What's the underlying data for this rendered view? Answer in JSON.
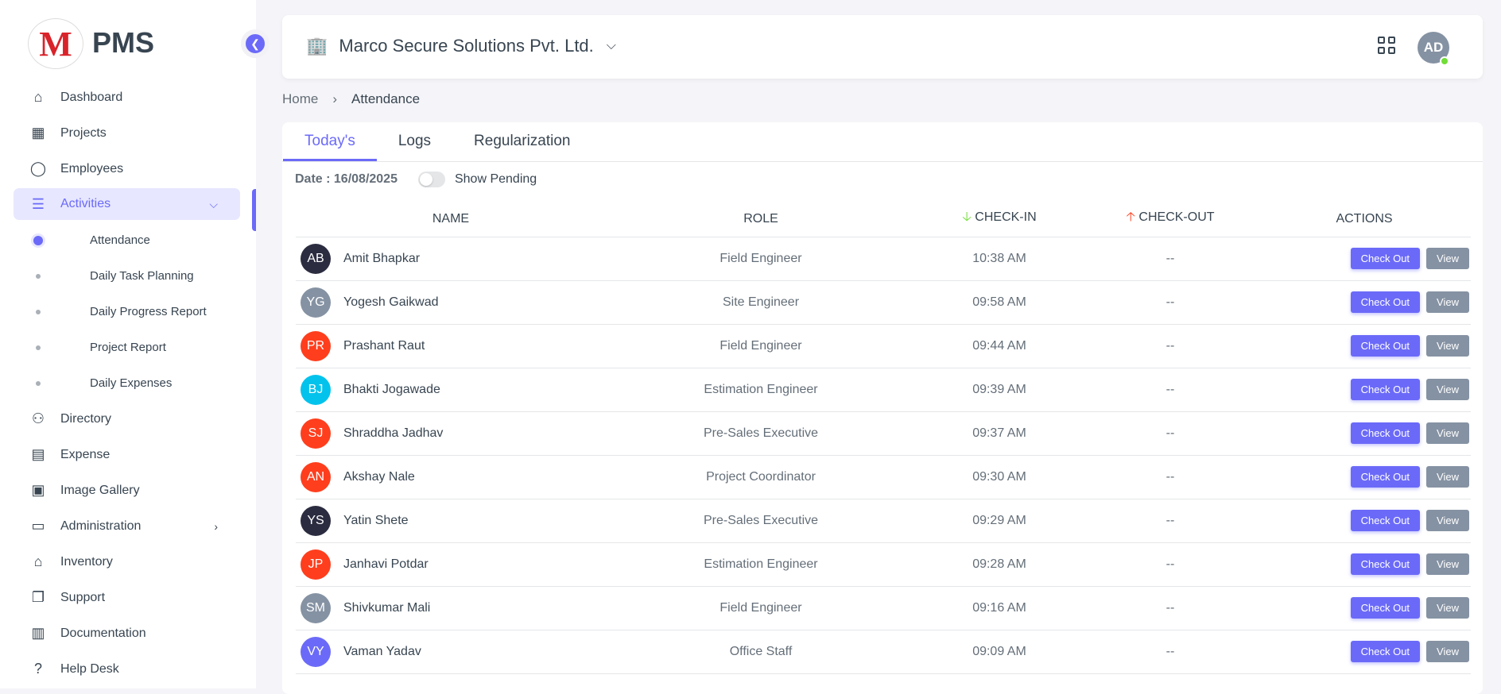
{
  "brand": {
    "logo_letter": "M",
    "name": "PMS"
  },
  "sidebar": {
    "items": [
      {
        "label": "Dashboard",
        "icon": "home-icon"
      },
      {
        "label": "Projects",
        "icon": "building-icon"
      },
      {
        "label": "Employees",
        "icon": "user-icon"
      },
      {
        "label": "Activities",
        "icon": "list-icon",
        "expanded": true,
        "active": true
      },
      {
        "label": "Directory",
        "icon": "users-icon"
      },
      {
        "label": "Expense",
        "icon": "receipt-icon"
      },
      {
        "label": "Image Gallery",
        "icon": "gallery-icon"
      },
      {
        "label": "Administration",
        "icon": "archive-icon",
        "has_children": true
      },
      {
        "label": "Inventory",
        "icon": "store-icon"
      },
      {
        "label": "Support",
        "icon": "copy-icon"
      },
      {
        "label": "Documentation",
        "icon": "book-icon"
      },
      {
        "label": "Help Desk",
        "icon": "question-icon"
      }
    ],
    "sub_items": [
      "Attendance",
      "Daily Task Planning",
      "Daily Progress Report",
      "Project Report",
      "Daily Expenses"
    ]
  },
  "header": {
    "company": "Marco Secure Solutions Pvt. Ltd.",
    "user_initials": "AD"
  },
  "breadcrumb": {
    "home": "Home",
    "current": "Attendance"
  },
  "tabs": [
    "Today's",
    "Logs",
    "Regularization"
  ],
  "filter": {
    "date": "Date : 16/08/2025",
    "toggle_label": "Show Pending",
    "toggle_on": false
  },
  "table": {
    "headers": [
      "NAME",
      "ROLE",
      "CHECK-IN",
      "CHECK-OUT",
      "ACTIONS"
    ],
    "check_out_label": "Check Out",
    "view_label": "View",
    "rows": [
      {
        "initials": "AB",
        "name": "Amit Bhapkar",
        "role": "Field Engineer",
        "check_in": "10:38 AM",
        "check_out": "--",
        "color": "#2b2c40"
      },
      {
        "initials": "YG",
        "name": "Yogesh Gaikwad",
        "role": "Site Engineer",
        "check_in": "09:58 AM",
        "check_out": "--",
        "color": "#8592a3"
      },
      {
        "initials": "PR",
        "name": "Prashant Raut",
        "role": "Field Engineer",
        "check_in": "09:44 AM",
        "check_out": "--",
        "color": "#ff3e1d"
      },
      {
        "initials": "BJ",
        "name": "Bhakti Jogawade",
        "role": "Estimation Engineer",
        "check_in": "09:39 AM",
        "check_out": "--",
        "color": "#03c3ec"
      },
      {
        "initials": "SJ",
        "name": "Shraddha Jadhav",
        "role": "Pre-Sales Executive",
        "check_in": "09:37 AM",
        "check_out": "--",
        "color": "#ff3e1d"
      },
      {
        "initials": "AN",
        "name": "Akshay Nale",
        "role": "Project Coordinator",
        "check_in": "09:30 AM",
        "check_out": "--",
        "color": "#ff3e1d"
      },
      {
        "initials": "YS",
        "name": "Yatin Shete",
        "role": "Pre-Sales Executive",
        "check_in": "09:29 AM",
        "check_out": "--",
        "color": "#2b2c40"
      },
      {
        "initials": "JP",
        "name": "Janhavi Potdar",
        "role": "Estimation Engineer",
        "check_in": "09:28 AM",
        "check_out": "--",
        "color": "#ff3e1d"
      },
      {
        "initials": "SM",
        "name": "Shivkumar Mali",
        "role": "Field Engineer",
        "check_in": "09:16 AM",
        "check_out": "--",
        "color": "#8592a3"
      },
      {
        "initials": "VY",
        "name": "Vaman Yadav",
        "role": "Office Staff",
        "check_in": "09:09 AM",
        "check_out": "--",
        "color": "#6b6af8"
      }
    ]
  },
  "colors": {
    "accent": "#6b6af8",
    "check_in_arrow": "#71dd37",
    "check_out_arrow": "#ff3e1d",
    "online": "#71dd37"
  }
}
